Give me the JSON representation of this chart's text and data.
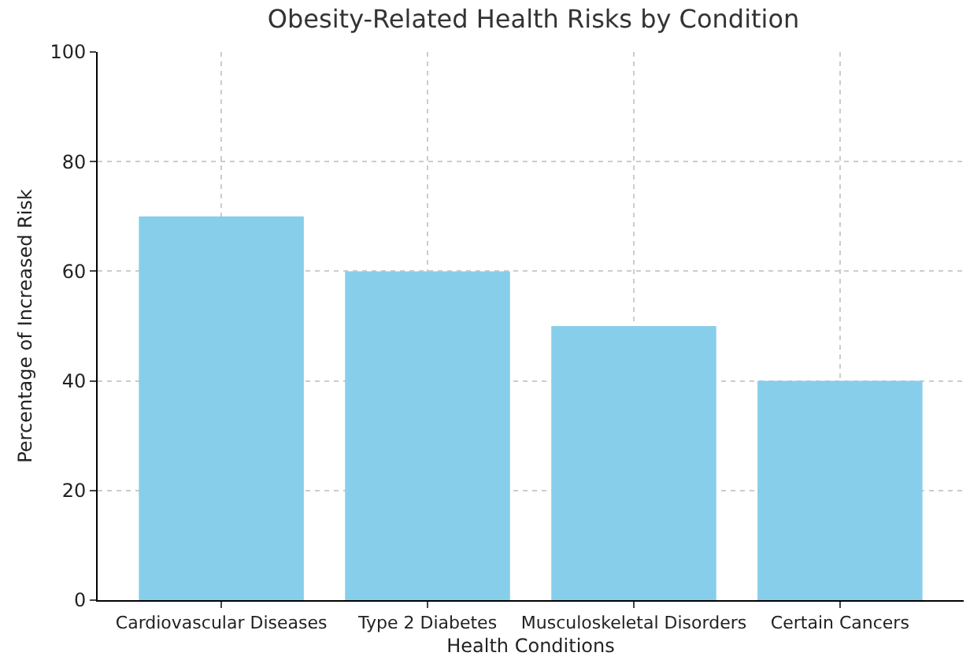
{
  "chart_data": {
    "type": "bar",
    "title": "Obesity-Related Health Risks by Condition",
    "xlabel": "Health Conditions",
    "ylabel": "Percentage of Increased Risk",
    "categories": [
      "Cardiovascular Diseases",
      "Type 2 Diabetes",
      "Musculoskeletal Disorders",
      "Certain Cancers"
    ],
    "values": [
      70,
      60,
      50,
      40
    ],
    "color": "#87ceeb",
    "ylim": [
      0,
      100
    ],
    "yticks": [
      0,
      20,
      40,
      60,
      80,
      100
    ],
    "grid": true
  }
}
